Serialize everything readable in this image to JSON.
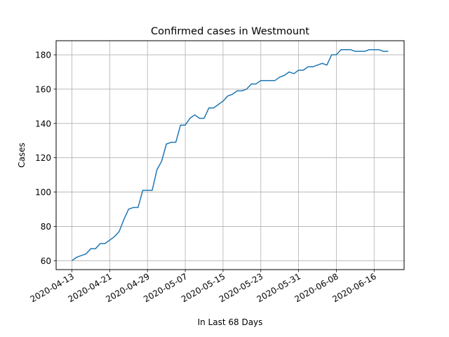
{
  "chart_data": {
    "type": "line",
    "title": "Confirmed cases in Westmount",
    "xlabel": "In Last 68 Days",
    "ylabel": "Cases",
    "grid": true,
    "ylim": [
      54.8,
      188.2
    ],
    "yticks": [
      60,
      80,
      100,
      120,
      140,
      160,
      180
    ],
    "xticks": [
      "2020-04-13",
      "2020-04-21",
      "2020-04-29",
      "2020-05-07",
      "2020-05-15",
      "2020-05-23",
      "2020-05-31",
      "2020-06-08",
      "2020-06-16"
    ],
    "line_color": "#1f77b4",
    "series": [
      {
        "x": [
          "2020-04-13",
          "2020-04-14",
          "2020-04-15",
          "2020-04-16",
          "2020-04-17",
          "2020-04-18",
          "2020-04-19",
          "2020-04-20",
          "2020-04-21",
          "2020-04-22",
          "2020-04-23",
          "2020-04-24",
          "2020-04-25",
          "2020-04-26",
          "2020-04-27",
          "2020-04-28",
          "2020-04-29",
          "2020-04-30",
          "2020-05-01",
          "2020-05-02",
          "2020-05-03",
          "2020-05-04",
          "2020-05-05",
          "2020-05-06",
          "2020-05-07",
          "2020-05-08",
          "2020-05-09",
          "2020-05-10",
          "2020-05-11",
          "2020-05-12",
          "2020-05-13",
          "2020-05-14",
          "2020-05-15",
          "2020-05-16",
          "2020-05-17",
          "2020-05-18",
          "2020-05-19",
          "2020-05-20",
          "2020-05-21",
          "2020-05-22",
          "2020-05-23",
          "2020-05-24",
          "2020-05-25",
          "2020-05-26",
          "2020-05-27",
          "2020-05-28",
          "2020-05-29",
          "2020-05-30",
          "2020-05-31",
          "2020-06-01",
          "2020-06-02",
          "2020-06-03",
          "2020-06-04",
          "2020-06-05",
          "2020-06-06",
          "2020-06-07",
          "2020-06-08",
          "2020-06-09",
          "2020-06-10",
          "2020-06-11",
          "2020-06-12",
          "2020-06-13",
          "2020-06-14",
          "2020-06-15",
          "2020-06-16",
          "2020-06-17",
          "2020-06-18",
          "2020-06-19"
        ],
        "values": [
          60,
          62,
          63,
          64,
          67,
          67,
          70,
          70,
          72,
          74,
          77,
          84,
          90,
          91,
          91,
          101,
          101,
          101,
          113,
          118,
          128,
          129,
          129,
          139,
          139,
          143,
          145,
          143,
          143,
          149,
          149,
          151,
          153,
          156,
          157,
          159,
          159,
          160,
          163,
          163,
          165,
          165,
          165,
          165,
          167,
          168,
          170,
          169,
          171,
          171,
          173,
          173,
          174,
          175,
          174,
          180,
          180,
          183,
          183,
          183,
          182,
          182,
          182,
          183,
          183,
          183,
          182,
          182
        ]
      }
    ]
  }
}
